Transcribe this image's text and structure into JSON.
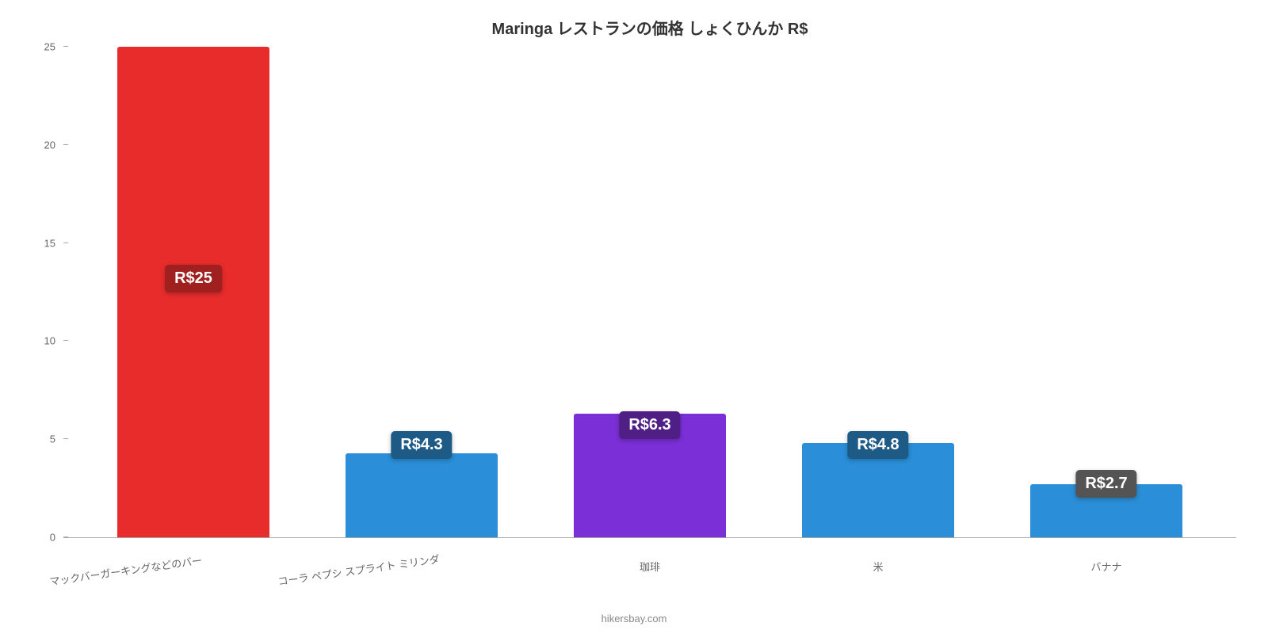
{
  "chart": {
    "type": "bar",
    "title": "Maringa レストランの価格 しょくひんか R$",
    "title_fontsize": 20,
    "title_color": "#333333",
    "background_color": "#ffffff",
    "axis_color": "#aaaaaa",
    "tick_label_color": "#666666",
    "tick_fontsize": 13,
    "ylim": [
      0,
      25
    ],
    "ytick_step": 5,
    "yticks": [
      0,
      5,
      10,
      15,
      20,
      25
    ],
    "bar_width": 0.72,
    "value_label_fontsize": 20,
    "value_label_text_color": "#ffffff",
    "categories": [
      "マックバーガーキングなどのバー",
      "コーラ ペプシ スプライト ミリンダ",
      "珈琲",
      "米",
      "バナナ"
    ],
    "values": [
      25,
      4.3,
      6.3,
      4.8,
      2.7
    ],
    "value_labels": [
      "R$25",
      "R$4.3",
      "R$6.3",
      "R$4.8",
      "R$2.7"
    ],
    "bar_colors": [
      "#e82c2c",
      "#2a8fd8",
      "#7b2fd6",
      "#2a8fd8",
      "#2a8fd8"
    ],
    "label_bg_colors": [
      "#a01f1f",
      "#1d5a85",
      "#4f1f85",
      "#1d5a85",
      "#545454"
    ],
    "label_positions_pct": [
      50,
      16,
      20,
      16,
      8
    ],
    "x_label_rotated": [
      true,
      true,
      false,
      false,
      false
    ],
    "attribution": "hikersbay.com",
    "attribution_color": "#888888"
  }
}
